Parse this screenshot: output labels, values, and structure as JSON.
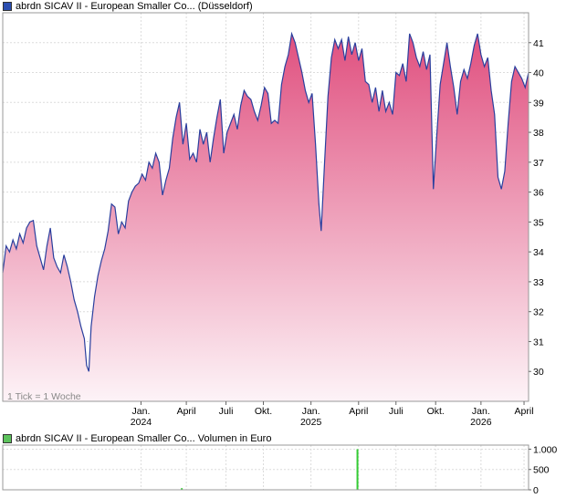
{
  "chart_data": [
    {
      "type": "area",
      "title": "abrdn SICAV II - European Smaller Co... (Düsseldorf)",
      "legend_color": "#2a4db0",
      "note": "1 Tick = 1 Woche",
      "line_color": "#2a3f9e",
      "fill_top_color": "#e0507f",
      "fill_bottom_color": "#fdf3f7",
      "ylim": [
        29,
        42
      ],
      "y_ticks": [
        30,
        31,
        32,
        33,
        34,
        35,
        36,
        37,
        38,
        39,
        40,
        41
      ],
      "x_ticks": [
        {
          "pos": 0.0,
          "label": "Jan.",
          "sub": "2024"
        },
        {
          "pos": 0.4,
          "label": "April",
          "sub": ""
        },
        {
          "pos": 0.75,
          "label": "Juli",
          "sub": ""
        },
        {
          "pos": 1.08,
          "label": "Okt.",
          "sub": ""
        },
        {
          "pos": 1.5,
          "label": "Jan.",
          "sub": "2025"
        },
        {
          "pos": 1.92,
          "label": "April",
          "sub": ""
        },
        {
          "pos": 2.25,
          "label": "Juli",
          "sub": ""
        },
        {
          "pos": 2.6,
          "label": "Okt.",
          "sub": ""
        },
        {
          "pos": 3.0,
          "label": "Jan.",
          "sub": "2026"
        },
        {
          "pos": 3.38,
          "label": "April",
          "sub": ""
        }
      ],
      "grid": true,
      "x_range": [
        -1.22,
        3.42
      ],
      "series": [
        {
          "values": [
            [
              -1.22,
              33.3
            ],
            [
              -1.19,
              34.2
            ],
            [
              -1.16,
              34.0
            ],
            [
              -1.13,
              34.4
            ],
            [
              -1.1,
              34.1
            ],
            [
              -1.07,
              34.6
            ],
            [
              -1.04,
              34.3
            ],
            [
              -1.01,
              34.8
            ],
            [
              -0.98,
              35.0
            ],
            [
              -0.95,
              35.05
            ],
            [
              -0.92,
              34.2
            ],
            [
              -0.89,
              33.8
            ],
            [
              -0.86,
              33.4
            ],
            [
              -0.83,
              34.2
            ],
            [
              -0.8,
              34.8
            ],
            [
              -0.77,
              33.8
            ],
            [
              -0.74,
              33.5
            ],
            [
              -0.71,
              33.3
            ],
            [
              -0.68,
              33.9
            ],
            [
              -0.65,
              33.5
            ],
            [
              -0.62,
              33.0
            ],
            [
              -0.59,
              32.4
            ],
            [
              -0.56,
              32.0
            ],
            [
              -0.53,
              31.5
            ],
            [
              -0.5,
              31.1
            ],
            [
              -0.48,
              30.2
            ],
            [
              -0.46,
              30.0
            ],
            [
              -0.44,
              31.5
            ],
            [
              -0.41,
              32.5
            ],
            [
              -0.38,
              33.2
            ],
            [
              -0.35,
              33.7
            ],
            [
              -0.32,
              34.1
            ],
            [
              -0.29,
              34.7
            ],
            [
              -0.26,
              35.6
            ],
            [
              -0.23,
              35.5
            ],
            [
              -0.2,
              34.6
            ],
            [
              -0.17,
              35.0
            ],
            [
              -0.14,
              34.8
            ],
            [
              -0.11,
              35.7
            ],
            [
              -0.08,
              36.0
            ],
            [
              -0.05,
              36.2
            ],
            [
              -0.02,
              36.3
            ],
            [
              0.01,
              36.6
            ],
            [
              0.04,
              36.4
            ],
            [
              0.07,
              37.0
            ],
            [
              0.1,
              36.8
            ],
            [
              0.13,
              37.3
            ],
            [
              0.16,
              37.0
            ],
            [
              0.19,
              35.9
            ],
            [
              0.22,
              36.4
            ],
            [
              0.25,
              36.8
            ],
            [
              0.28,
              37.8
            ],
            [
              0.31,
              38.5
            ],
            [
              0.34,
              39.0
            ],
            [
              0.37,
              37.6
            ],
            [
              0.4,
              38.3
            ],
            [
              0.43,
              37.1
            ],
            [
              0.46,
              37.3
            ],
            [
              0.49,
              37.0
            ],
            [
              0.52,
              38.1
            ],
            [
              0.55,
              37.6
            ],
            [
              0.58,
              38.0
            ],
            [
              0.61,
              37.0
            ],
            [
              0.64,
              37.8
            ],
            [
              0.67,
              38.5
            ],
            [
              0.7,
              39.1
            ],
            [
              0.73,
              37.3
            ],
            [
              0.76,
              38.0
            ],
            [
              0.79,
              38.3
            ],
            [
              0.82,
              38.6
            ],
            [
              0.85,
              38.1
            ],
            [
              0.88,
              38.9
            ],
            [
              0.91,
              39.4
            ],
            [
              0.94,
              39.2
            ],
            [
              0.97,
              39.1
            ],
            [
              1.0,
              38.7
            ],
            [
              1.03,
              38.4
            ],
            [
              1.06,
              38.9
            ],
            [
              1.09,
              39.5
            ],
            [
              1.12,
              39.3
            ],
            [
              1.15,
              38.3
            ],
            [
              1.18,
              38.4
            ],
            [
              1.21,
              38.3
            ],
            [
              1.24,
              39.6
            ],
            [
              1.27,
              40.2
            ],
            [
              1.3,
              40.6
            ],
            [
              1.33,
              41.3
            ],
            [
              1.36,
              41.0
            ],
            [
              1.39,
              40.5
            ],
            [
              1.42,
              40.0
            ],
            [
              1.45,
              39.4
            ],
            [
              1.48,
              39.0
            ],
            [
              1.51,
              39.3
            ],
            [
              1.54,
              37.6
            ],
            [
              1.57,
              35.6
            ],
            [
              1.59,
              34.7
            ],
            [
              1.62,
              37.0
            ],
            [
              1.65,
              39.2
            ],
            [
              1.68,
              40.5
            ],
            [
              1.71,
              41.1
            ],
            [
              1.74,
              40.8
            ],
            [
              1.77,
              41.1
            ],
            [
              1.8,
              40.4
            ],
            [
              1.83,
              41.2
            ],
            [
              1.86,
              40.6
            ],
            [
              1.89,
              41.0
            ],
            [
              1.92,
              40.4
            ],
            [
              1.95,
              40.8
            ],
            [
              1.98,
              39.7
            ],
            [
              2.01,
              39.6
            ],
            [
              2.04,
              39.0
            ],
            [
              2.07,
              39.5
            ],
            [
              2.1,
              38.7
            ],
            [
              2.13,
              39.4
            ],
            [
              2.16,
              38.7
            ],
            [
              2.19,
              39.0
            ],
            [
              2.22,
              38.6
            ],
            [
              2.25,
              40.0
            ],
            [
              2.28,
              39.9
            ],
            [
              2.31,
              40.3
            ],
            [
              2.34,
              39.7
            ],
            [
              2.37,
              41.3
            ],
            [
              2.4,
              41.0
            ],
            [
              2.43,
              40.5
            ],
            [
              2.46,
              40.2
            ],
            [
              2.49,
              40.7
            ],
            [
              2.52,
              40.1
            ],
            [
              2.55,
              40.6
            ],
            [
              2.58,
              36.1
            ],
            [
              2.61,
              37.9
            ],
            [
              2.64,
              39.6
            ],
            [
              2.67,
              40.3
            ],
            [
              2.7,
              41.0
            ],
            [
              2.73,
              40.2
            ],
            [
              2.76,
              39.5
            ],
            [
              2.79,
              38.6
            ],
            [
              2.82,
              39.7
            ],
            [
              2.85,
              40.1
            ],
            [
              2.88,
              39.8
            ],
            [
              2.91,
              40.3
            ],
            [
              2.94,
              40.9
            ],
            [
              2.97,
              41.3
            ],
            [
              3.0,
              40.6
            ],
            [
              3.03,
              40.2
            ],
            [
              3.06,
              40.5
            ],
            [
              3.09,
              39.4
            ],
            [
              3.12,
              38.6
            ],
            [
              3.15,
              36.5
            ],
            [
              3.18,
              36.1
            ],
            [
              3.21,
              36.7
            ],
            [
              3.24,
              38.3
            ],
            [
              3.27,
              39.7
            ],
            [
              3.3,
              40.2
            ],
            [
              3.33,
              40.0
            ],
            [
              3.36,
              39.8
            ],
            [
              3.39,
              39.5
            ],
            [
              3.42,
              40.0
            ]
          ]
        }
      ]
    },
    {
      "type": "bar",
      "title": "abrdn SICAV II - European Smaller Co... Volumen in Euro",
      "legend_color": "#5cc25c",
      "bar_color": "#33cc33",
      "ylim": [
        0,
        1100
      ],
      "y_ticks": [
        {
          "value": 1000,
          "label": "1.000"
        },
        {
          "value": 500,
          "label": "500"
        },
        {
          "value": 0,
          "label": "0"
        }
      ],
      "grid": true,
      "x_range": [
        -1.22,
        3.42
      ],
      "bars": [
        {
          "x": 0.36,
          "value": 40
        },
        {
          "x": 1.91,
          "value": 1000
        }
      ]
    }
  ]
}
